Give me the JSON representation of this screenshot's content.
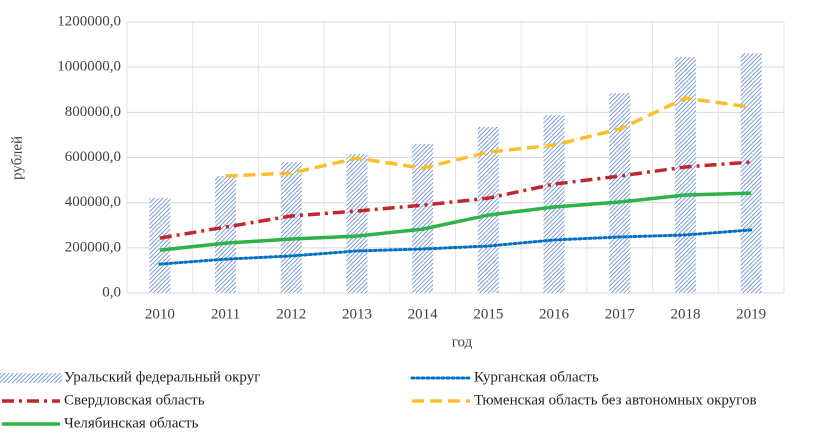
{
  "chart_data": {
    "type": "combo",
    "x_label": "год",
    "y_label": "рублей",
    "categories": [
      "2010",
      "2011",
      "2012",
      "2013",
      "2014",
      "2015",
      "2016",
      "2017",
      "2018",
      "2019"
    ],
    "ylim": [
      0,
      1200000
    ],
    "yticks": [
      {
        "value": 0,
        "label": "0,0"
      },
      {
        "value": 200000,
        "label": "200000,0"
      },
      {
        "value": 400000,
        "label": "400000,0"
      },
      {
        "value": 600000,
        "label": "600000,0"
      },
      {
        "value": 800000,
        "label": "800000,0"
      },
      {
        "value": 1000000,
        "label": "1000000,0"
      },
      {
        "value": 1200000,
        "label": "1200000,0"
      }
    ],
    "grid": true,
    "legend": "bottom",
    "series": [
      {
        "name": "Уральский федеральный округ",
        "type": "bar",
        "color": "#4472c4",
        "values": [
          420000,
          518000,
          580000,
          615000,
          660000,
          735000,
          788000,
          885000,
          1045000,
          1062000
        ]
      },
      {
        "name": "Курганская область",
        "type": "line",
        "dash": "dot",
        "color": "#0070c0",
        "values": [
          128000,
          150000,
          164000,
          186000,
          195000,
          208000,
          235000,
          248000,
          257000,
          279000
        ]
      },
      {
        "name": "Свердловская область",
        "type": "line",
        "dash": "dashdot",
        "color": "#c0282d",
        "values": [
          243000,
          292000,
          341000,
          363000,
          389000,
          420000,
          482000,
          518000,
          558000,
          580000
        ]
      },
      {
        "name": "Тюменская область без автономных округов",
        "type": "line",
        "dash": "dash",
        "color": "#fbbf2e",
        "values": [
          null,
          518000,
          531000,
          597000,
          553000,
          624000,
          655000,
          726000,
          863000,
          823000
        ]
      },
      {
        "name": "Челябинская область",
        "type": "line",
        "dash": "solid",
        "color": "#2db34a",
        "values": [
          190000,
          221000,
          239000,
          252000,
          283000,
          345000,
          381000,
          403000,
          434000,
          442000
        ]
      }
    ]
  }
}
